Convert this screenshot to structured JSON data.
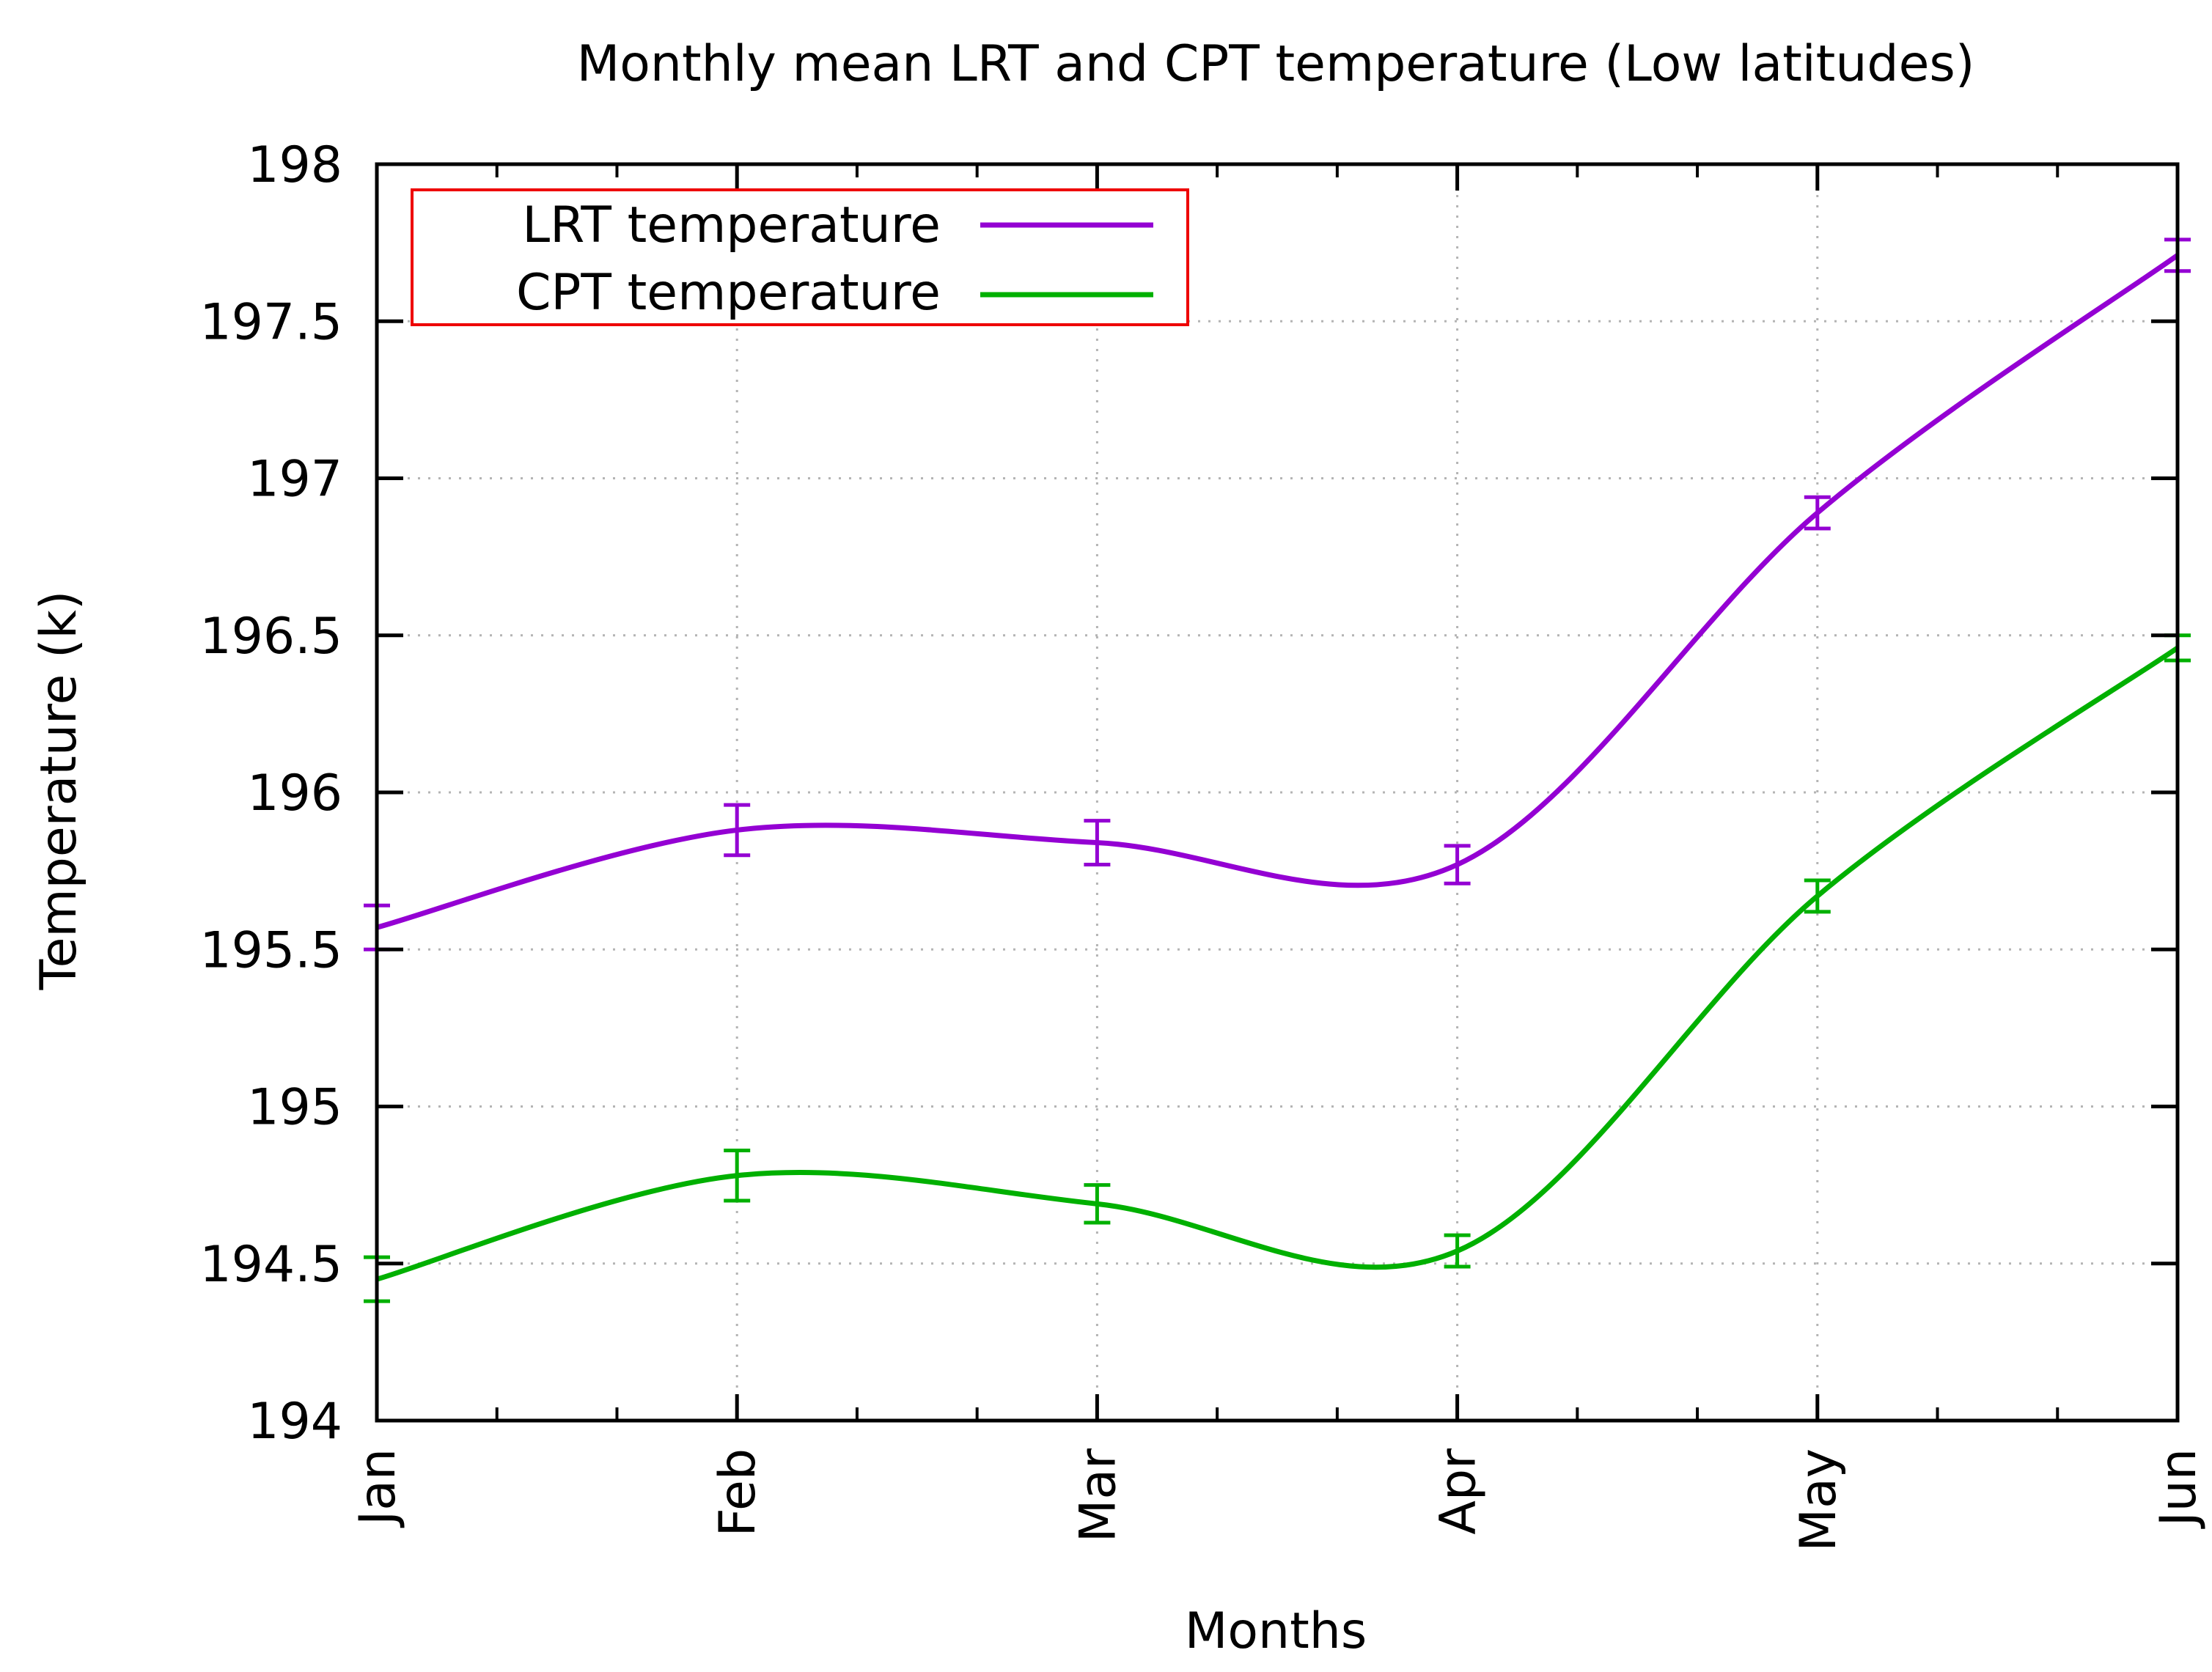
{
  "chart_data": {
    "type": "line",
    "title": "Monthly mean LRT and CPT temperature (Low latitudes)",
    "xlabel": "Months",
    "ylabel": "Temperature (k)",
    "categories": [
      "Jan",
      "Feb",
      "Mar",
      "Apr",
      "May",
      "Jun"
    ],
    "ylim": [
      194,
      198
    ],
    "yticks": [
      "194",
      "194.5",
      "195",
      "195.5",
      "196",
      "196.5",
      "197",
      "197.5",
      "198"
    ],
    "grid": true,
    "legend_position": "top-left",
    "series": [
      {
        "name": "LRT temperature",
        "color": "#9400d3",
        "values": [
          195.57,
          195.88,
          195.84,
          195.77,
          196.89,
          197.71
        ],
        "errors": [
          0.07,
          0.08,
          0.07,
          0.06,
          0.05,
          0.05
        ]
      },
      {
        "name": "CPT temperature",
        "color": "#00b000",
        "values": [
          194.45,
          194.78,
          194.69,
          194.54,
          195.67,
          196.46
        ],
        "errors": [
          0.07,
          0.08,
          0.06,
          0.05,
          0.05,
          0.04
        ]
      }
    ]
  }
}
